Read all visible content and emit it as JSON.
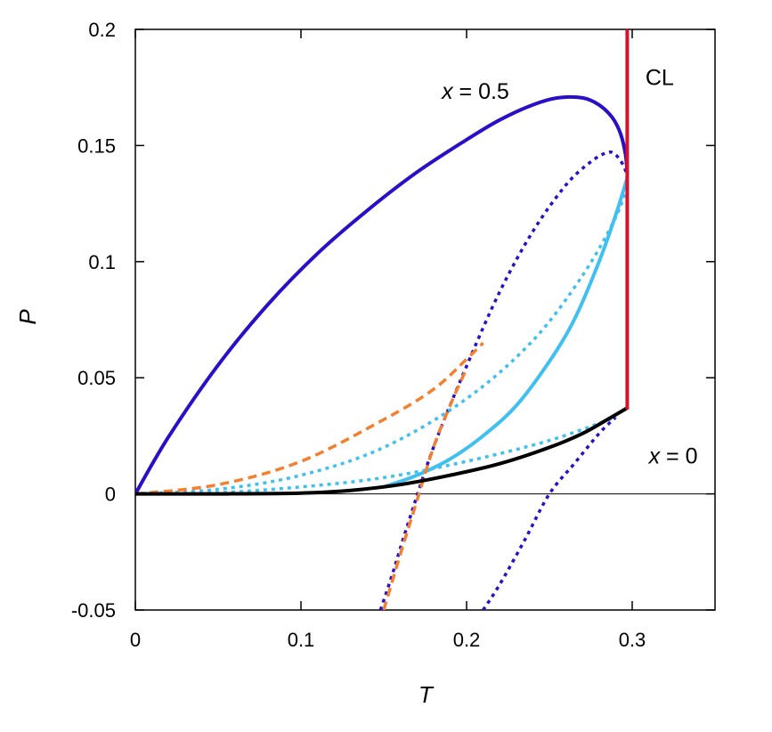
{
  "chart_data": {
    "type": "line",
    "title": "",
    "xlabel": "T",
    "ylabel": "P",
    "xlim": [
      0,
      0.35
    ],
    "ylim": [
      -0.05,
      0.2
    ],
    "xticks": [
      0,
      0.1,
      0.2,
      0.3
    ],
    "xtick_labels": [
      "0",
      "0.1",
      "0.2",
      "0.3"
    ],
    "yticks": [
      -0.05,
      0,
      0.05,
      0.1,
      0.15,
      0.2
    ],
    "ytick_labels": [
      "-0.05",
      "0",
      "0.05",
      "0.1",
      "0.15",
      "0.2"
    ],
    "grid": false,
    "annotations": [
      {
        "var": "x",
        "rest": " = 0.5",
        "at": [
          0.185,
          0.17
        ]
      },
      {
        "var": "x",
        "rest": " = 0",
        "at": [
          0.31,
          0.013
        ]
      },
      {
        "text": "CL",
        "at": [
          0.308,
          0.176
        ]
      }
    ],
    "series": [
      {
        "color": "#2a0fc8",
        "style": "solid",
        "x": [
          0,
          0.02,
          0.05,
          0.08,
          0.11,
          0.14,
          0.17,
          0.2,
          0.22,
          0.24,
          0.255,
          0.27,
          0.28,
          0.288,
          0.293,
          0.296,
          0.297
        ],
        "y": [
          0,
          0.0245,
          0.0555,
          0.0815,
          0.1035,
          0.122,
          0.1385,
          0.1525,
          0.161,
          0.1675,
          0.1705,
          0.1705,
          0.1675,
          0.162,
          0.155,
          0.146,
          0.138
        ]
      },
      {
        "color": "#2a0fc8",
        "style": "dotted",
        "x": [
          0.148,
          0.155,
          0.165,
          0.18,
          0.2,
          0.22,
          0.24,
          0.26,
          0.275,
          0.285,
          0.29,
          0.295,
          0.297
        ],
        "y": [
          -0.05,
          -0.035,
          -0.012,
          0.02,
          0.055,
          0.087,
          0.113,
          0.133,
          0.143,
          0.147,
          0.146,
          0.141,
          0.136
        ]
      },
      {
        "color": "#2a0fc8",
        "style": "dotted",
        "x": [
          0.21,
          0.22,
          0.235,
          0.25,
          0.265,
          0.28,
          0.29
        ],
        "y": [
          -0.05,
          -0.039,
          -0.02,
          0.0,
          0.013,
          0.026,
          0.033
        ]
      },
      {
        "color": "#40c0f0",
        "style": "solid",
        "x": [
          0.15,
          0.17,
          0.19,
          0.21,
          0.23,
          0.25,
          0.265,
          0.28,
          0.29,
          0.297
        ],
        "y": [
          0.003,
          0.008,
          0.015,
          0.025,
          0.038,
          0.057,
          0.075,
          0.1,
          0.12,
          0.136
        ]
      },
      {
        "color": "#40c0f0",
        "style": "dotted",
        "x": [
          0,
          0.05,
          0.1,
          0.15,
          0.2,
          0.24,
          0.27,
          0.29,
          0.297
        ],
        "y": [
          0,
          0.002,
          0.008,
          0.02,
          0.041,
          0.066,
          0.094,
          0.119,
          0.133
        ]
      },
      {
        "color": "#40c0f0",
        "style": "dotted",
        "x": [
          0,
          0.05,
          0.1,
          0.15,
          0.2,
          0.25,
          0.29
        ],
        "y": [
          0,
          0.0005,
          0.003,
          0.007,
          0.014,
          0.023,
          0.033
        ]
      },
      {
        "color": "#f28030",
        "style": "dashed",
        "x": [
          0,
          0.05,
          0.1,
          0.15,
          0.18,
          0.2,
          0.21
        ],
        "y": [
          0,
          0.004,
          0.014,
          0.032,
          0.045,
          0.058,
          0.065
        ]
      },
      {
        "color": "#f28030",
        "style": "dashed",
        "x": [
          0.15,
          0.16,
          0.17,
          0.18,
          0.19,
          0.2
        ],
        "y": [
          -0.05,
          -0.026,
          -0.003,
          0.02,
          0.038,
          0.054
        ]
      },
      {
        "color": "#000000",
        "style": "solid",
        "x": [
          0,
          0.05,
          0.1,
          0.13,
          0.16,
          0.19,
          0.22,
          0.25,
          0.27,
          0.285,
          0.297
        ],
        "y": [
          0,
          0.0,
          0.0003,
          0.0015,
          0.004,
          0.008,
          0.013,
          0.02,
          0.026,
          0.032,
          0.037
        ]
      },
      {
        "color": "#d8102a",
        "style": "solid",
        "x": [
          0.297,
          0.297
        ],
        "y": [
          0.037,
          0.2
        ]
      }
    ]
  }
}
